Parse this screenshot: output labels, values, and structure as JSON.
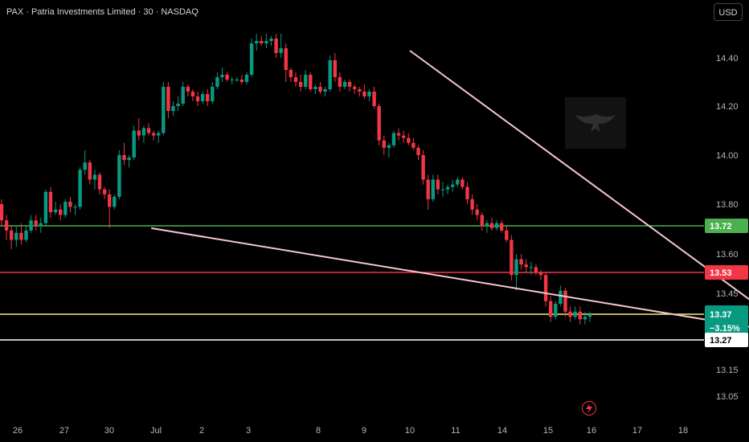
{
  "header": {
    "title": "PAX · Patria Investments Limited · 30 · NASDAQ",
    "currency_button": "USD"
  },
  "colors": {
    "background": "#000000",
    "up": "#089981",
    "down": "#f23645",
    "green_line": "#4caf50",
    "red_line": "#f23645",
    "yellow_line": "#f6f07a",
    "white_line": "#ffffff",
    "trendline": "#f5c6cf",
    "tick_text": "#b2b5be"
  },
  "icons": {
    "alert": "lightning-bolt-icon",
    "watermark": "eagle-logo"
  },
  "chart_data": {
    "type": "candlestick",
    "x_ticks": [
      "26",
      "27",
      "30",
      "Jul",
      "2",
      "3",
      "8",
      "9",
      "10",
      "11",
      "14",
      "15",
      "16",
      "17",
      "18"
    ],
    "y_ticks": [
      14.4,
      14.2,
      14.0,
      13.8,
      13.6,
      13.45,
      13.15,
      13.05
    ],
    "horizontal_levels": [
      {
        "label": "13.72",
        "value": 13.72,
        "color": "#4caf50"
      },
      {
        "label": "13.53",
        "value": 13.53,
        "color": "#f23645"
      },
      {
        "label": "13.37",
        "value": 13.37,
        "color": "#f6f07a",
        "sublabel": "−3.15%"
      },
      {
        "label": "13.27",
        "value": 13.27,
        "color": "#ffffff"
      }
    ],
    "last_price": 13.37,
    "change_percent": "−3.15%",
    "upper_trendline": {
      "from": [
        8.0,
        14.43
      ],
      "to": [
        16.5,
        13.29
      ]
    },
    "lower_trendline": {
      "from": [
        2.9,
        13.71
      ],
      "to": [
        16.5,
        13.29
      ]
    },
    "position": {
      "entry": 13.37,
      "target": 13.72,
      "stop": 13.29,
      "x_start": 15.75,
      "x_end": 16.5
    },
    "candles_ohlc": [
      [
        13.8,
        13.82,
        13.72,
        13.74
      ],
      [
        13.74,
        13.76,
        13.66,
        13.7
      ],
      [
        13.7,
        13.72,
        13.62,
        13.66
      ],
      [
        13.66,
        13.72,
        13.63,
        13.69
      ],
      [
        13.69,
        13.73,
        13.64,
        13.66
      ],
      [
        13.66,
        13.72,
        13.65,
        13.7
      ],
      [
        13.7,
        13.76,
        13.69,
        13.74
      ],
      [
        13.74,
        13.76,
        13.7,
        13.72
      ],
      [
        13.72,
        13.75,
        13.69,
        13.73
      ],
      [
        13.73,
        13.86,
        13.72,
        13.85
      ],
      [
        13.85,
        13.87,
        13.75,
        13.77
      ],
      [
        13.77,
        13.81,
        13.76,
        13.78
      ],
      [
        13.78,
        13.8,
        13.74,
        13.76
      ],
      [
        13.76,
        13.82,
        13.75,
        13.81
      ],
      [
        13.81,
        13.83,
        13.77,
        13.79
      ],
      [
        13.79,
        13.8,
        13.76,
        13.79
      ],
      [
        13.79,
        13.95,
        13.78,
        13.94
      ],
      [
        13.94,
        14.02,
        13.92,
        13.97
      ],
      [
        13.97,
        13.98,
        13.88,
        13.9
      ],
      [
        13.9,
        13.94,
        13.86,
        13.92
      ],
      [
        13.92,
        13.93,
        13.84,
        13.86
      ],
      [
        13.86,
        13.87,
        13.82,
        13.84
      ],
      [
        13.84,
        13.86,
        13.71,
        13.79
      ],
      [
        13.79,
        13.84,
        13.78,
        13.83
      ],
      [
        13.83,
        14.02,
        13.82,
        14.0
      ],
      [
        14.0,
        14.05,
        13.96,
        13.98
      ],
      [
        13.98,
        14.0,
        13.95,
        13.99
      ],
      [
        13.99,
        14.12,
        13.98,
        14.1
      ],
      [
        14.1,
        14.15,
        14.06,
        14.08
      ],
      [
        14.08,
        14.12,
        14.05,
        14.11
      ],
      [
        14.11,
        14.13,
        14.08,
        14.09
      ],
      [
        14.09,
        14.1,
        14.06,
        14.08
      ],
      [
        14.08,
        14.1,
        14.05,
        14.09
      ],
      [
        14.09,
        14.3,
        14.08,
        14.28
      ],
      [
        14.28,
        14.3,
        14.15,
        14.18
      ],
      [
        14.18,
        14.22,
        14.16,
        14.2
      ],
      [
        14.2,
        14.24,
        14.18,
        14.21
      ],
      [
        14.21,
        14.3,
        14.2,
        14.28
      ],
      [
        14.28,
        14.29,
        14.24,
        14.26
      ],
      [
        14.26,
        14.27,
        14.22,
        14.24
      ],
      [
        14.24,
        14.26,
        14.2,
        14.22
      ],
      [
        14.22,
        14.26,
        14.21,
        14.25
      ],
      [
        14.25,
        14.27,
        14.2,
        14.22
      ],
      [
        14.22,
        14.3,
        14.21,
        14.28
      ],
      [
        14.28,
        14.34,
        14.27,
        14.32
      ],
      [
        14.32,
        14.36,
        14.3,
        14.33
      ],
      [
        14.33,
        14.34,
        14.3,
        14.31
      ],
      [
        14.31,
        14.32,
        14.29,
        14.31
      ],
      [
        14.31,
        14.32,
        14.3,
        14.31
      ],
      [
        14.31,
        14.33,
        14.29,
        14.3
      ],
      [
        14.3,
        14.34,
        14.29,
        14.33
      ],
      [
        14.33,
        14.48,
        14.32,
        14.46
      ],
      [
        14.46,
        14.5,
        14.43,
        14.47
      ],
      [
        14.47,
        14.49,
        14.45,
        14.46
      ],
      [
        14.46,
        14.5,
        14.44,
        14.47
      ],
      [
        14.47,
        14.49,
        14.45,
        14.48
      ],
      [
        14.48,
        14.5,
        14.4,
        14.42
      ],
      [
        14.42,
        14.5,
        14.4,
        14.44
      ],
      [
        14.44,
        14.46,
        14.3,
        14.35
      ],
      [
        14.35,
        14.36,
        14.3,
        14.32
      ],
      [
        14.32,
        14.34,
        14.28,
        14.3
      ],
      [
        14.3,
        14.33,
        14.26,
        14.28
      ],
      [
        14.28,
        14.35,
        14.27,
        14.33
      ],
      [
        14.33,
        14.34,
        14.26,
        14.27
      ],
      [
        14.27,
        14.29,
        14.25,
        14.28
      ],
      [
        14.28,
        14.3,
        14.25,
        14.26
      ],
      [
        14.26,
        14.28,
        14.24,
        14.27
      ],
      [
        14.27,
        14.41,
        14.26,
        14.39
      ],
      [
        14.39,
        14.42,
        14.3,
        14.32
      ],
      [
        14.32,
        14.34,
        14.26,
        14.28
      ],
      [
        14.28,
        14.31,
        14.27,
        14.3
      ],
      [
        14.3,
        14.31,
        14.26,
        14.28
      ],
      [
        14.28,
        14.29,
        14.25,
        14.27
      ],
      [
        14.27,
        14.28,
        14.24,
        14.26
      ],
      [
        14.26,
        14.29,
        14.23,
        14.24
      ],
      [
        14.24,
        14.27,
        14.22,
        14.26
      ],
      [
        14.26,
        14.28,
        14.19,
        14.2
      ],
      [
        14.2,
        14.21,
        14.04,
        14.06
      ],
      [
        14.06,
        14.08,
        14.0,
        14.03
      ],
      [
        14.03,
        14.05,
        13.99,
        14.04
      ],
      [
        14.04,
        14.1,
        14.03,
        14.09
      ],
      [
        14.09,
        14.11,
        14.06,
        14.08
      ],
      [
        14.08,
        14.1,
        14.05,
        14.07
      ],
      [
        14.07,
        14.09,
        14.04,
        14.05
      ],
      [
        14.05,
        14.07,
        14.02,
        14.03
      ],
      [
        14.03,
        14.04,
        13.98,
        14.0
      ],
      [
        14.0,
        14.02,
        13.88,
        13.9
      ],
      [
        13.9,
        13.92,
        13.78,
        13.82
      ],
      [
        13.82,
        13.92,
        13.81,
        13.9
      ],
      [
        13.9,
        13.92,
        13.84,
        13.86
      ],
      [
        13.86,
        13.89,
        13.83,
        13.86
      ],
      [
        13.86,
        13.88,
        13.84,
        13.87
      ],
      [
        13.87,
        13.9,
        13.85,
        13.88
      ],
      [
        13.88,
        13.91,
        13.87,
        13.9
      ],
      [
        13.9,
        13.91,
        13.86,
        13.87
      ],
      [
        13.87,
        13.89,
        13.8,
        13.82
      ],
      [
        13.82,
        13.84,
        13.76,
        13.78
      ],
      [
        13.78,
        13.8,
        13.74,
        13.76
      ],
      [
        13.76,
        13.77,
        13.7,
        13.72
      ],
      [
        13.72,
        13.74,
        13.69,
        13.73
      ],
      [
        13.73,
        13.75,
        13.7,
        13.71
      ],
      [
        13.71,
        13.74,
        13.7,
        13.73
      ],
      [
        13.73,
        13.74,
        13.69,
        13.7
      ],
      [
        13.7,
        13.72,
        13.65,
        13.66
      ],
      [
        13.66,
        13.68,
        13.5,
        13.52
      ],
      [
        13.52,
        13.6,
        13.46,
        13.58
      ],
      [
        13.58,
        13.6,
        13.54,
        13.56
      ],
      [
        13.56,
        13.58,
        13.53,
        13.55
      ],
      [
        13.55,
        13.57,
        13.52,
        13.55
      ],
      [
        13.55,
        13.56,
        13.52,
        13.53
      ],
      [
        13.53,
        13.54,
        13.5,
        13.52
      ],
      [
        13.52,
        13.53,
        13.4,
        13.42
      ],
      [
        13.42,
        13.44,
        13.34,
        13.36
      ],
      [
        13.36,
        13.42,
        13.35,
        13.41
      ],
      [
        13.41,
        13.48,
        13.4,
        13.46
      ],
      [
        13.46,
        13.47,
        13.36,
        13.38
      ],
      [
        13.38,
        13.4,
        13.34,
        13.36
      ],
      [
        13.36,
        13.4,
        13.35,
        13.38
      ],
      [
        13.38,
        13.4,
        13.33,
        13.35
      ],
      [
        13.35,
        13.38,
        13.33,
        13.36
      ],
      [
        13.36,
        13.38,
        13.34,
        13.37
      ]
    ]
  }
}
